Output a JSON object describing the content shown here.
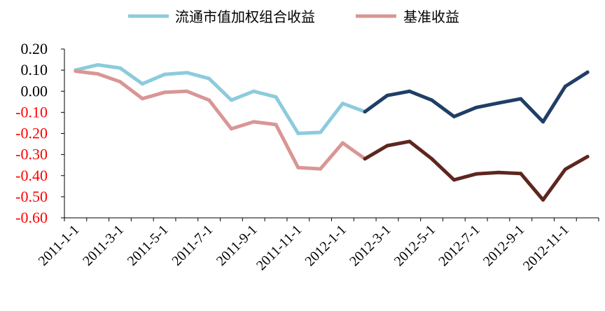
{
  "chart_data": {
    "type": "line",
    "title": "",
    "xlabel": "",
    "ylabel": "",
    "ylim": [
      -0.6,
      0.2
    ],
    "yticks": [
      "0.20",
      "0.10",
      "0.00",
      "-0.10",
      "-0.20",
      "-0.30",
      "-0.40",
      "-0.50",
      "-0.60"
    ],
    "negative_tick_color": "#ff0000",
    "x": [
      "2011-1-1",
      "2011-2-1",
      "2011-3-1",
      "2011-4-1",
      "2011-5-1",
      "2011-6-1",
      "2011-7-1",
      "2011-8-1",
      "2011-9-1",
      "2011-10-1",
      "2011-11-1",
      "2011-12-1",
      "2012-1-1",
      "2012-2-1",
      "2012-3-1",
      "2012-4-1",
      "2012-5-1",
      "2012-6-1",
      "2012-7-1",
      "2012-8-1",
      "2012-9-1",
      "2012-10-1",
      "2012-11-1",
      "2012-12-1"
    ],
    "xtick_labels": [
      "2011-1-1",
      "2011-3-1",
      "2011-5-1",
      "2011-7-1",
      "2011-9-1",
      "2011-11-1",
      "2012-1-1",
      "2012-3-1",
      "2012-5-1",
      "2012-7-1",
      "2012-9-1",
      "2012-11-1"
    ],
    "legend_position": "top",
    "grid": false,
    "split_index": 13,
    "series": [
      {
        "name": "流通市值加权组合收益",
        "color_early": "#8ccbdc",
        "color_late": "#1f3f66",
        "values": [
          0.1,
          0.125,
          0.11,
          0.035,
          0.08,
          0.088,
          0.06,
          -0.042,
          0.0,
          -0.027,
          -0.2,
          -0.195,
          -0.058,
          -0.097,
          -0.02,
          0.0,
          -0.042,
          -0.12,
          -0.077,
          -0.056,
          -0.036,
          -0.145,
          0.023,
          0.09
        ]
      },
      {
        "name": "基准收益",
        "color_early": "#d99694",
        "color_late": "#5e2620",
        "values": [
          0.095,
          0.082,
          0.045,
          -0.035,
          -0.005,
          0.0,
          -0.042,
          -0.178,
          -0.145,
          -0.158,
          -0.362,
          -0.368,
          -0.245,
          -0.32,
          -0.258,
          -0.238,
          -0.32,
          -0.42,
          -0.392,
          -0.385,
          -0.39,
          -0.515,
          -0.37,
          -0.31
        ]
      }
    ]
  }
}
